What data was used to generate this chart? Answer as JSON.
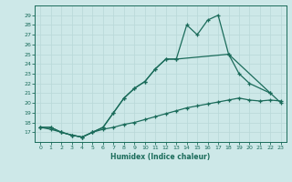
{
  "xlabel": "Humidex (Indice chaleur)",
  "bg_color": "#cde8e8",
  "grid_color": "#b0d0d0",
  "line_color": "#1a6b5a",
  "xlim": [
    -0.5,
    23.5
  ],
  "ylim": [
    16,
    30
  ],
  "yticks": [
    17,
    18,
    19,
    20,
    21,
    22,
    23,
    24,
    25,
    26,
    27,
    28,
    29
  ],
  "xticks": [
    0,
    1,
    2,
    3,
    4,
    5,
    6,
    7,
    8,
    9,
    10,
    11,
    12,
    13,
    14,
    15,
    16,
    17,
    18,
    19,
    20,
    21,
    22,
    23
  ],
  "line1_x": [
    0,
    1,
    2,
    3,
    4,
    5,
    6,
    7,
    8,
    9,
    10,
    11,
    12,
    13,
    14,
    15,
    16,
    17,
    18,
    22,
    23
  ],
  "line1_y": [
    17.5,
    17.5,
    17.0,
    16.7,
    16.5,
    17.0,
    17.5,
    19.0,
    20.5,
    21.5,
    22.2,
    23.5,
    24.5,
    24.5,
    28.0,
    27.0,
    28.5,
    29.0,
    25.0,
    21.0,
    20.0
  ],
  "line2_x": [
    0,
    1,
    2,
    3,
    4,
    5,
    6,
    7,
    8,
    9,
    10,
    11,
    12,
    13,
    18,
    19,
    20,
    22
  ],
  "line2_y": [
    17.5,
    17.5,
    17.0,
    16.7,
    16.5,
    17.0,
    17.5,
    19.0,
    20.5,
    21.5,
    22.2,
    23.5,
    24.5,
    24.5,
    25.0,
    23.0,
    22.0,
    21.0
  ],
  "line3_x": [
    0,
    1,
    2,
    3,
    4,
    5,
    6,
    7,
    8,
    9,
    10,
    11,
    12,
    13,
    14,
    15,
    16,
    17,
    18,
    19,
    20,
    21,
    22,
    23
  ],
  "line3_y": [
    17.5,
    17.3,
    17.0,
    16.7,
    16.5,
    17.0,
    17.3,
    17.5,
    17.8,
    18.0,
    18.3,
    18.6,
    18.9,
    19.2,
    19.5,
    19.7,
    19.9,
    20.1,
    20.3,
    20.5,
    20.3,
    20.2,
    20.3,
    20.2
  ]
}
